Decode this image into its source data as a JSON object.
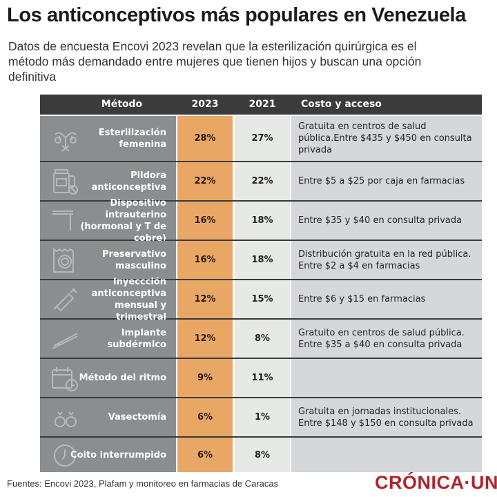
{
  "title": "Los anticonceptivos más populares en Venezuela",
  "subtitle": "Datos de encuesta Encovi 2023 revelan que la esterilización quirúrgica es el método más demandado entre mujeres que tienen hijos y buscan una opción definitiva",
  "colors": {
    "header": "#3b3b3b",
    "method_col": "#8b8e91",
    "col_2023": "#e9a766",
    "col_2021": "#e7e9e6",
    "cost_col": "#d5d8da",
    "logo": "#b0232b"
  },
  "chart_data": {
    "type": "table",
    "columns": [
      "Método",
      "2023",
      "2021",
      "Costo y acceso"
    ],
    "rows": [
      {
        "icon": "uterus-icon",
        "method": "Esterilización femenina",
        "y2023": "28%",
        "y2021": "27%",
        "cost": "Gratuita en centros de salud pública.Entre $435 y $450 en consulta privada"
      },
      {
        "icon": "pill-bottle-icon",
        "method": "Pildora anticonceptiva",
        "y2023": "22%",
        "y2021": "22%",
        "cost": "Entre $5 a $25 por caja en farmacias"
      },
      {
        "icon": "iud-icon",
        "method": "Dispositivo intrauterino (hormonal y T de cobre)",
        "y2023": "16%",
        "y2021": "18%",
        "cost": "Entre $35 y $40 en consulta privada"
      },
      {
        "icon": "condom-icon",
        "method": "Preservativo masculino",
        "y2023": "16%",
        "y2021": "18%",
        "cost": "Distribución gratuita en la red pública. Entre $2 a $4 en farmacias"
      },
      {
        "icon": "syringe-icon",
        "method": "Inyeccción anticonceptiva mensual y trimestral",
        "y2023": "12%",
        "y2021": "15%",
        "cost": "Entre $6 y $15 en farmacias"
      },
      {
        "icon": "implant-icon",
        "method": "Implante subdérmico",
        "y2023": "12%",
        "y2021": "8%",
        "cost": "Gratuito en centros de salud pública. Entre $35 a $40 en consulta privada"
      },
      {
        "icon": "calendar-clock-icon",
        "method": "Método del ritmo",
        "y2023": "9%",
        "y2021": "11%",
        "cost": ""
      },
      {
        "icon": "testicles-icon",
        "method": "Vasectomía",
        "y2023": "6%",
        "y2021": "1%",
        "cost": "Gratuita en jornadas institucionales. Entre $148 y $150 en consulta privada"
      },
      {
        "icon": "clock-icon",
        "method": "Coito interrumpido",
        "y2023": "6%",
        "y2021": "8%",
        "cost": ""
      }
    ]
  },
  "source": "Fuentes: Encovi 2023, Plafam y monitoreo en farmacias de Caracas",
  "logo": "CRÓNICA·UNO"
}
